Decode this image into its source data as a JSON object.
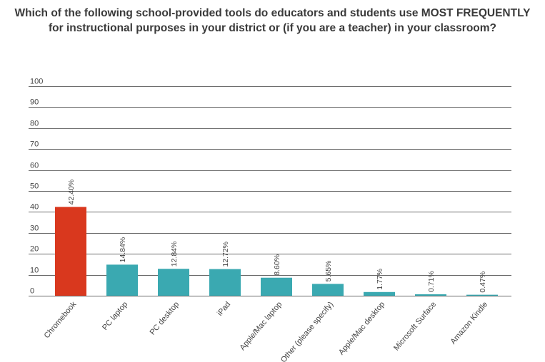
{
  "title": {
    "line1": "Which of the following school-provided tools do educators and students use MOST FREQUENTLY",
    "line2": "for instructional purposes in your district or (if you are a teacher) in your classroom?"
  },
  "chart_data": {
    "type": "bar",
    "title": "Which of the following school-provided tools do educators and students use MOST FREQUENTLY for instructional purposes in your district or (if you are a teacher) in your classroom?",
    "xlabel": "",
    "ylabel": "",
    "ylim": [
      0,
      100
    ],
    "yticks": [
      0,
      10,
      20,
      30,
      40,
      50,
      60,
      70,
      80,
      90,
      100
    ],
    "grid": true,
    "categories": [
      "Chromebook",
      "PC laptop",
      "PC desktop",
      "iPad",
      "Apple/Mac laptop",
      "Other (please specify)",
      "Apple/Mac desktop",
      "Microsoft Surface",
      "Amazon Kindle"
    ],
    "values": [
      42.4,
      14.84,
      12.84,
      12.72,
      8.6,
      5.65,
      1.77,
      0.71,
      0.47
    ],
    "data_labels": [
      "42.40%",
      "14.84%",
      "12.84%",
      "12.72%",
      "8.60%",
      "5.65%",
      "1.77%",
      "0.71%",
      "0.47%"
    ],
    "colors": {
      "highlight": "#d9381e",
      "default": "#3aa9b1"
    }
  }
}
